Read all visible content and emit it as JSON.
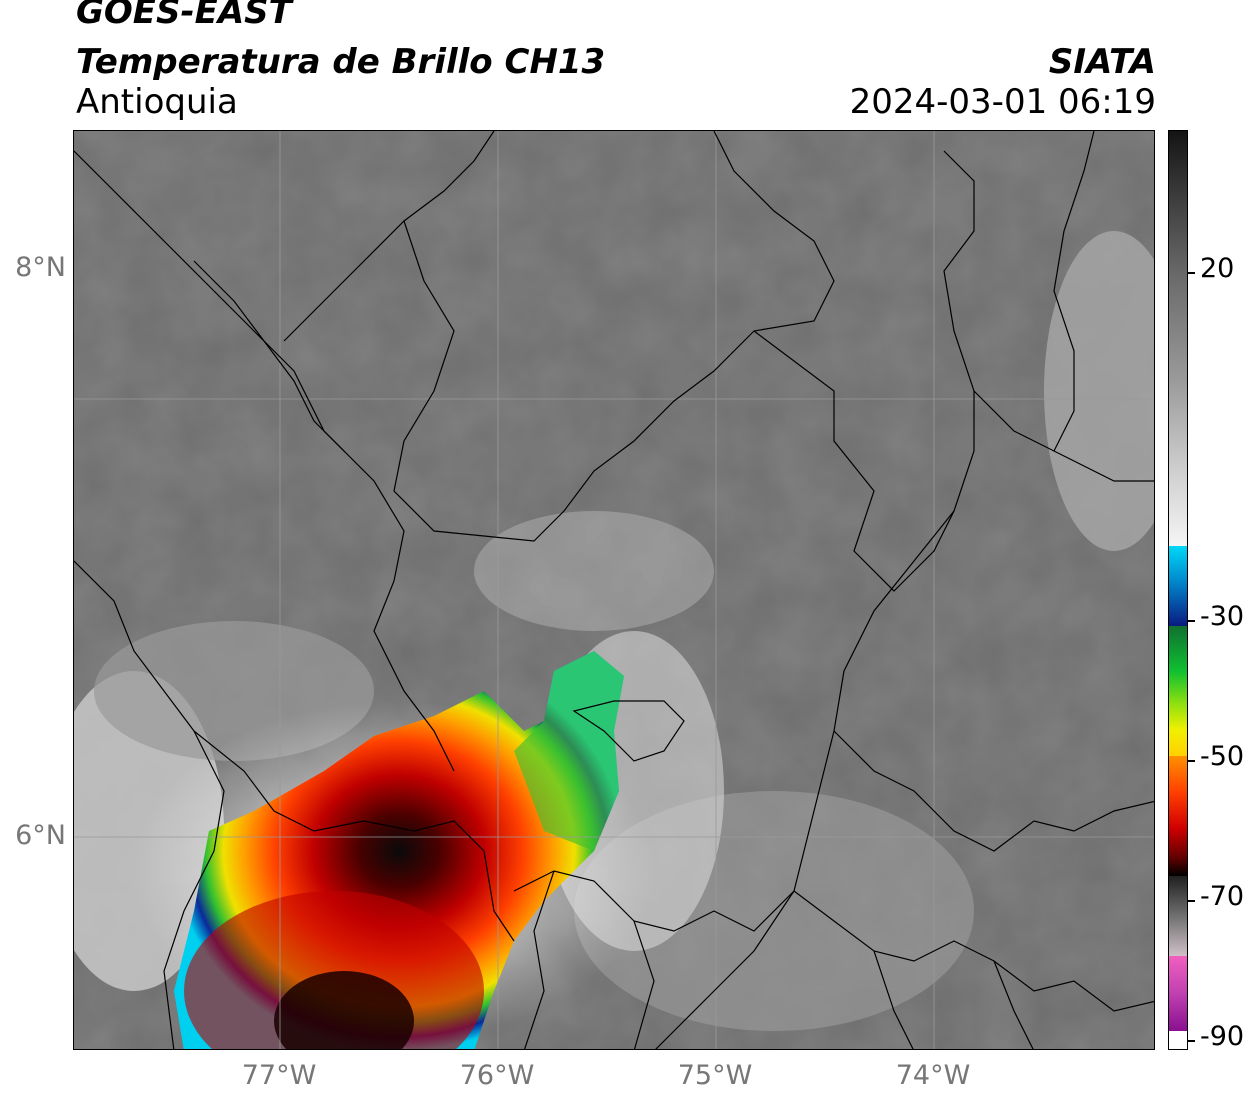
{
  "title": {
    "satellite": "GOES-EAST",
    "product": "Temperatura de Brillo CH13",
    "region": "Antioquia",
    "organization": "SIATA",
    "datetime": "2024-03-01 06:19"
  },
  "map": {
    "lat_labels": [
      "8°N",
      "6°N"
    ],
    "lon_labels": [
      "77°W",
      "76°W",
      "75°W",
      "74°W"
    ],
    "background_color": "#6e6e6e",
    "grid_color": "#9a9a9a",
    "border_color": "#000000"
  },
  "colorbar": {
    "tick_labels": [
      "20",
      "-30",
      "-50",
      "-70",
      "-90"
    ],
    "colors": {
      "warm_gray": "#1a1a1a",
      "mid_gray": "#8a8a8a",
      "light": "#f2f2f2",
      "cyan": "#00d5f5",
      "blue": "#0a2a9a",
      "green": "#10c030",
      "yellow": "#f0e000",
      "orange": "#ff8000",
      "red": "#d00000",
      "black": "#0a0a0a",
      "magenta": "#a020a0",
      "white": "#ffffff"
    }
  }
}
